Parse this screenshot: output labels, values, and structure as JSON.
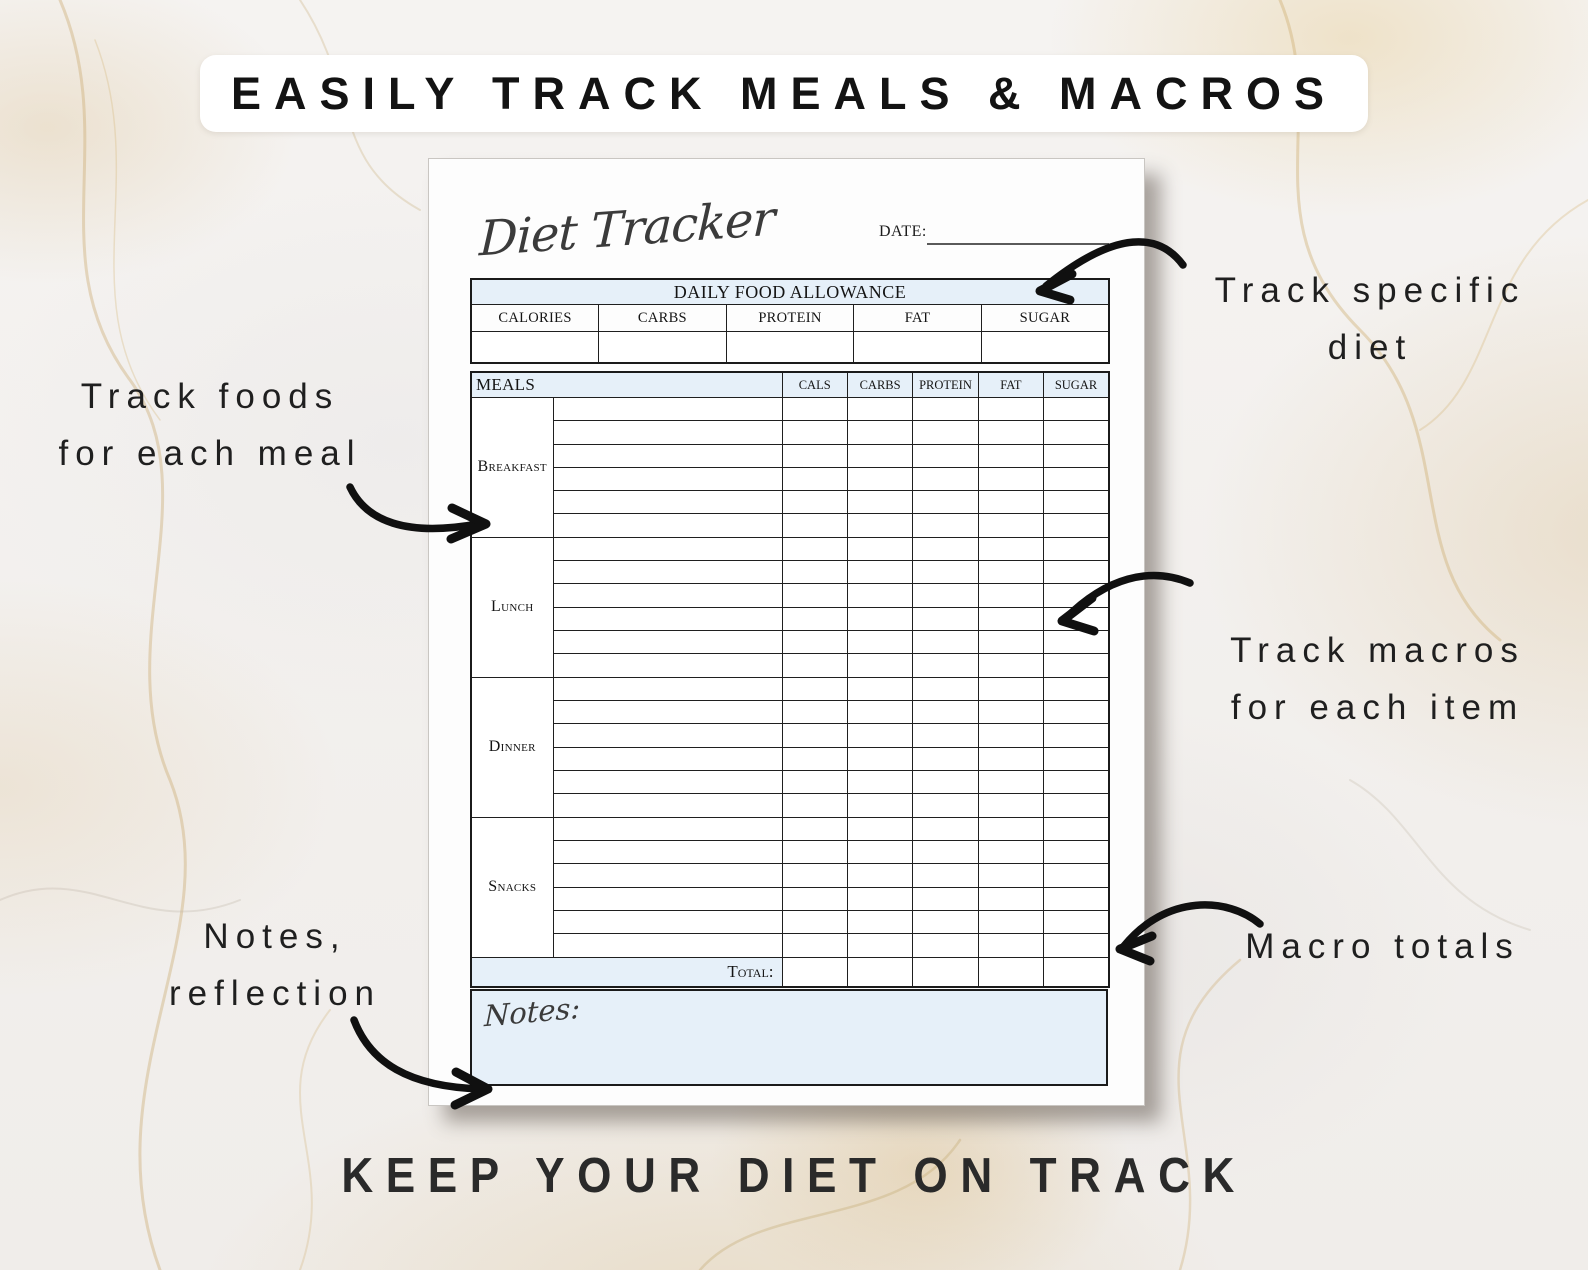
{
  "banner": {
    "title": "EASILY TRACK MEALS & MACROS"
  },
  "footer": {
    "title": "KEEP YOUR DIET ON TRACK"
  },
  "annotations": {
    "track_specific_diet": {
      "lines": [
        "Track specific",
        "diet"
      ]
    },
    "track_foods": {
      "lines": [
        "Track foods",
        "for each meal"
      ]
    },
    "track_macros": {
      "lines": [
        "Track macros",
        "for each item"
      ]
    },
    "macro_totals": {
      "lines": [
        "Macro totals"
      ]
    },
    "notes_reflection": {
      "lines": [
        "Notes,",
        "reflection"
      ]
    }
  },
  "page": {
    "title_script": "Diet Tracker",
    "date_label": "DATE:",
    "allowance": {
      "header": "DAILY FOOD ALLOWANCE",
      "columns": [
        "CALORIES",
        "CARBS",
        "PROTEIN",
        "FAT",
        "SUGAR"
      ]
    },
    "meals_table": {
      "header": "MEALS",
      "macro_columns": [
        "CALS",
        "CARBS",
        "PROTEIN",
        "FAT",
        "SUGAR"
      ],
      "meals": [
        "Breakfast",
        "Lunch",
        "Dinner",
        "Snacks"
      ],
      "rows_per_meal": 6,
      "total_label": "Total:"
    },
    "notes_label": "Notes:"
  },
  "colors": {
    "table_header_blue": "#e6f0f9",
    "ink": "#1b1b1b",
    "marble_gold": "#d9b87c"
  }
}
